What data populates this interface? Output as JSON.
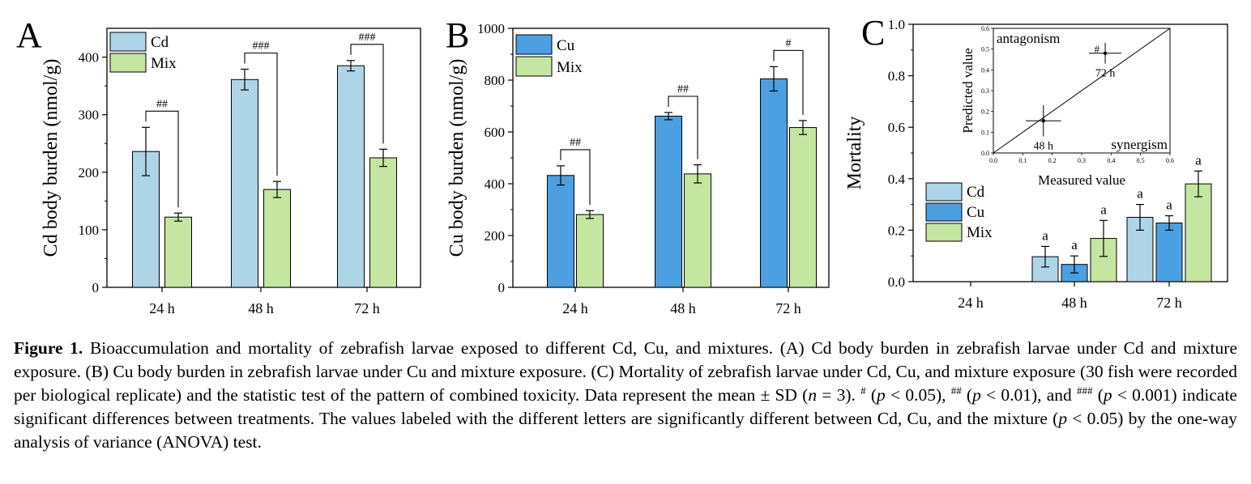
{
  "colors": {
    "cd": "#aed4e8",
    "cu": "#4c9fe0",
    "mix": "#c4e6a0",
    "axis": "#000000"
  },
  "chart_data": [
    {
      "panel": "A",
      "type": "bar",
      "ylabel": "Cd body burden (nmol/g)",
      "ylim": [
        0,
        450
      ],
      "yticks": [
        0,
        100,
        200,
        300,
        400
      ],
      "categories": [
        "24 h",
        "48 h",
        "72 h"
      ],
      "legend_placement": "top-left",
      "series": [
        {
          "name": "Cd",
          "color_key": "cd",
          "values": [
            236,
            361,
            385
          ],
          "errors": [
            42,
            18,
            9
          ]
        },
        {
          "name": "Mix",
          "color_key": "mix",
          "values": [
            122,
            170,
            225
          ],
          "errors": [
            7,
            14,
            15
          ]
        }
      ],
      "significance": [
        "##",
        "###",
        "###"
      ]
    },
    {
      "panel": "B",
      "type": "bar",
      "ylabel": "Cu body burden (nmol/g)",
      "ylim": [
        0,
        1000
      ],
      "yticks": [
        0,
        200,
        400,
        600,
        800,
        1000
      ],
      "categories": [
        "24 h",
        "48 h",
        "72 h"
      ],
      "legend_placement": "top-left",
      "series": [
        {
          "name": "Cu",
          "color_key": "cu",
          "values": [
            432,
            661,
            805
          ],
          "errors": [
            37,
            14,
            47
          ]
        },
        {
          "name": "Mix",
          "color_key": "mix",
          "values": [
            281,
            438,
            617
          ],
          "errors": [
            15,
            35,
            27
          ]
        }
      ],
      "significance": [
        "##",
        "##",
        "#"
      ]
    },
    {
      "panel": "C",
      "type": "bar",
      "ylabel": "Mortality",
      "ylim": [
        0,
        1.0
      ],
      "yticks": [
        0.0,
        0.2,
        0.4,
        0.6,
        0.8,
        1.0
      ],
      "categories": [
        "24 h",
        "48 h",
        "72 h"
      ],
      "legend_placement": "left",
      "series": [
        {
          "name": "Cd",
          "color_key": "cd",
          "values": [
            0,
            0.097,
            0.25
          ],
          "errors": [
            0,
            0.04,
            0.05
          ]
        },
        {
          "name": "Cu",
          "color_key": "cu",
          "values": [
            0,
            0.067,
            0.228
          ],
          "errors": [
            0,
            0.033,
            0.028
          ]
        },
        {
          "name": "Mix",
          "color_key": "mix",
          "values": [
            0,
            0.168,
            0.38
          ],
          "errors": [
            0,
            0.07,
            0.05
          ]
        }
      ],
      "bar_letters": [
        [
          "",
          "",
          ""
        ],
        [
          "a",
          "a",
          "a"
        ],
        [
          "a",
          "a",
          "a"
        ]
      ],
      "inset": {
        "type": "scatter",
        "xlabel": "Measured value",
        "ylabel": "Predicted value",
        "xlim": [
          0,
          0.6
        ],
        "ylim": [
          0,
          0.6
        ],
        "ticks": [
          0.0,
          0.1,
          0.2,
          0.3,
          0.4,
          0.5,
          0.6
        ],
        "region_labels": [
          "antagonism",
          "synergism"
        ],
        "points": [
          {
            "label": "48 h",
            "x": 0.17,
            "y": 0.155,
            "xerr": 0.06,
            "yerr": 0.075,
            "mark": ""
          },
          {
            "label": "72 h",
            "x": 0.38,
            "y": 0.48,
            "xerr": 0.055,
            "yerr": 0.05,
            "mark": "#"
          }
        ]
      }
    }
  ],
  "panel_letters": [
    "A",
    "B",
    "C"
  ],
  "caption": {
    "label": "Figure 1.",
    "t1": " Bioaccumulation and mortality of zebrafish larvae exposed to different Cd, Cu, and mixtures. (A) Cd body burden in zebrafish larvae under Cd and mixture exposure. (B) Cu body burden in zebrafish larvae under Cu and mixture exposure. (C) Mortality of zebrafish larvae under Cd, Cu, and mixture exposure (30 fish were recorded per biological replicate) and the statistic test of the pattern of combined toxicity. Data represent the mean ± SD (",
    "n": "n",
    "t2": " = 3). ",
    "s1": "#",
    "t3": " (",
    "p1": "p",
    "t4": " < 0.05), ",
    "s2": "##",
    "t5": " (",
    "p2": "p",
    "t6": " < 0.01), and ",
    "s3": "###",
    "t7": " (",
    "p3": "p",
    "t8": " < 0.001) indicate significant differences between treatments. The values labeled with the different letters are significantly different between Cd, Cu, and the mixture (",
    "p4": "p",
    "t9": " < 0.05) by the one-way analysis of variance (ANOVA) test."
  }
}
